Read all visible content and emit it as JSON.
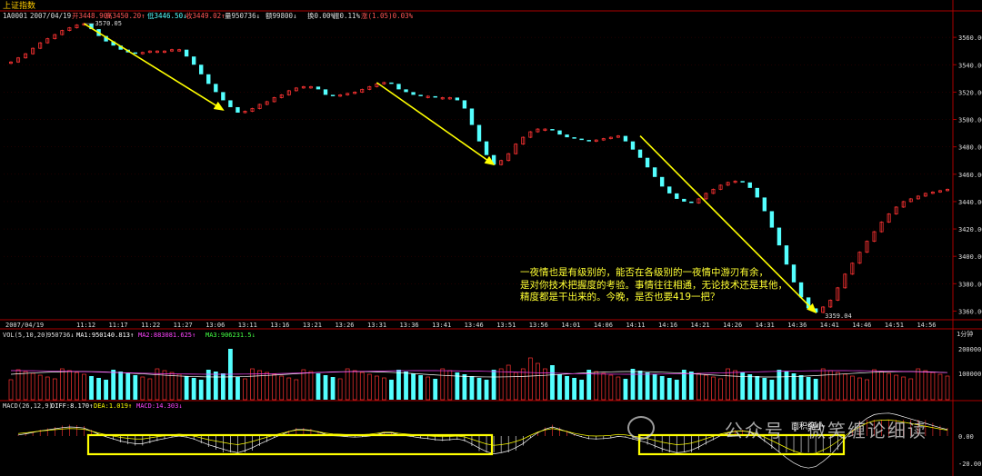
{
  "window": {
    "title": "上证指数"
  },
  "header": {
    "code": "1A0001",
    "date": "2007/04/19",
    "open": "开3448.90↑",
    "high": "高3450.20↑",
    "low": "低3446.50↓",
    "close": "收3449.02↑",
    "volume": "量950736↓",
    "amount": "额99800↓",
    "turnover": "换0.00%",
    "amplitude": "振0.11%",
    "change": "涨(1.05)0.03%"
  },
  "labels": {
    "high_mark": "3570.05",
    "low_mark": "3359.04"
  },
  "annotation": {
    "text": "一夜情也是有级别的，能否在各级别的一夜情中游刃有余，\n是对你技术把握度的考验。事情往往相通，无论技术还是其他，\n精度都是干出来的。今晚，是否也要419一把？"
  },
  "vol_header": {
    "name": "VOL(5,10,20)",
    "value": "950736↓",
    "ma1": "MA1:950140.813↑",
    "ma2": "MA2:883081.625↑",
    "ma3": "MA3:906231.5↓"
  },
  "macd_header": {
    "name": "MACD(26,12,9)",
    "diff": "DIFF:8.170↑",
    "dea": "DEA:1.019↑",
    "macd": "MACD:14.303↓"
  },
  "watermark": {
    "text": "公众号 · 微笑缠论细读",
    "zoom": "面积缩小"
  },
  "colors": {
    "up": "#ff3333",
    "down": "#54ffff",
    "ma1": "#ffffff",
    "ma2": "#ff44ff",
    "ma3": "#44ff44",
    "dif": "#ffffff",
    "dea": "#ffff00",
    "box": "#ffff00",
    "arrow": "#ffff00"
  },
  "chart_data": {
    "type": "candlestick",
    "xlabels": [
      "2007/04/19",
      "11:12",
      "11:17",
      "11:22",
      "11:27",
      "13:06",
      "13:11",
      "13:16",
      "13:21",
      "13:26",
      "13:31",
      "13:36",
      "13:41",
      "13:46",
      "13:51",
      "13:56",
      "14:01",
      "14:06",
      "14:11",
      "14:16",
      "14:21",
      "14:26",
      "14:31",
      "14:36",
      "14:41",
      "14:46",
      "14:51",
      "14:56"
    ],
    "yticks": [
      3560,
      3540,
      3520,
      3500,
      3480,
      3460,
      3440,
      3420,
      3400,
      3380,
      3360
    ],
    "ylim": [
      3355,
      3578
    ],
    "price": [
      3542,
      3545,
      3548,
      3552,
      3556,
      3559,
      3562,
      3565,
      3567,
      3569,
      3570,
      3566,
      3561,
      3557,
      3554,
      3551,
      3549,
      3548,
      3549,
      3550,
      3550,
      3550,
      3551,
      3551,
      3546,
      3540,
      3533,
      3526,
      3520,
      3514,
      3509,
      3505,
      3506,
      3508,
      3511,
      3513,
      3516,
      3518,
      3521,
      3523,
      3524,
      3524,
      3522,
      3518,
      3517,
      3518,
      3519,
      3520,
      3522,
      3524,
      3526,
      3527,
      3526,
      3522,
      3520,
      3518,
      3517,
      3517,
      3516,
      3516,
      3516,
      3514,
      3508,
      3496,
      3484,
      3474,
      3467,
      3470,
      3475,
      3482,
      3487,
      3491,
      3493,
      3493,
      3492,
      3489,
      3487,
      3486,
      3485,
      3484,
      3485,
      3486,
      3487,
      3488,
      3484,
      3478,
      3472,
      3465,
      3458,
      3451,
      3446,
      3442,
      3440,
      3439,
      3442,
      3446,
      3449,
      3452,
      3454,
      3455,
      3454,
      3450,
      3443,
      3433,
      3421,
      3408,
      3394,
      3381,
      3370,
      3362,
      3359,
      3363,
      3368,
      3377,
      3387,
      3395,
      3403,
      3411,
      3418,
      3425,
      3431,
      3436,
      3440,
      3442,
      3444,
      3446,
      3447,
      3448,
      3449
    ],
    "ma_volume_ticks": [
      "200000",
      "100000"
    ],
    "macd_ticks": [
      "0.00",
      "-20.00"
    ],
    "axis_right_label": "1分钟"
  }
}
